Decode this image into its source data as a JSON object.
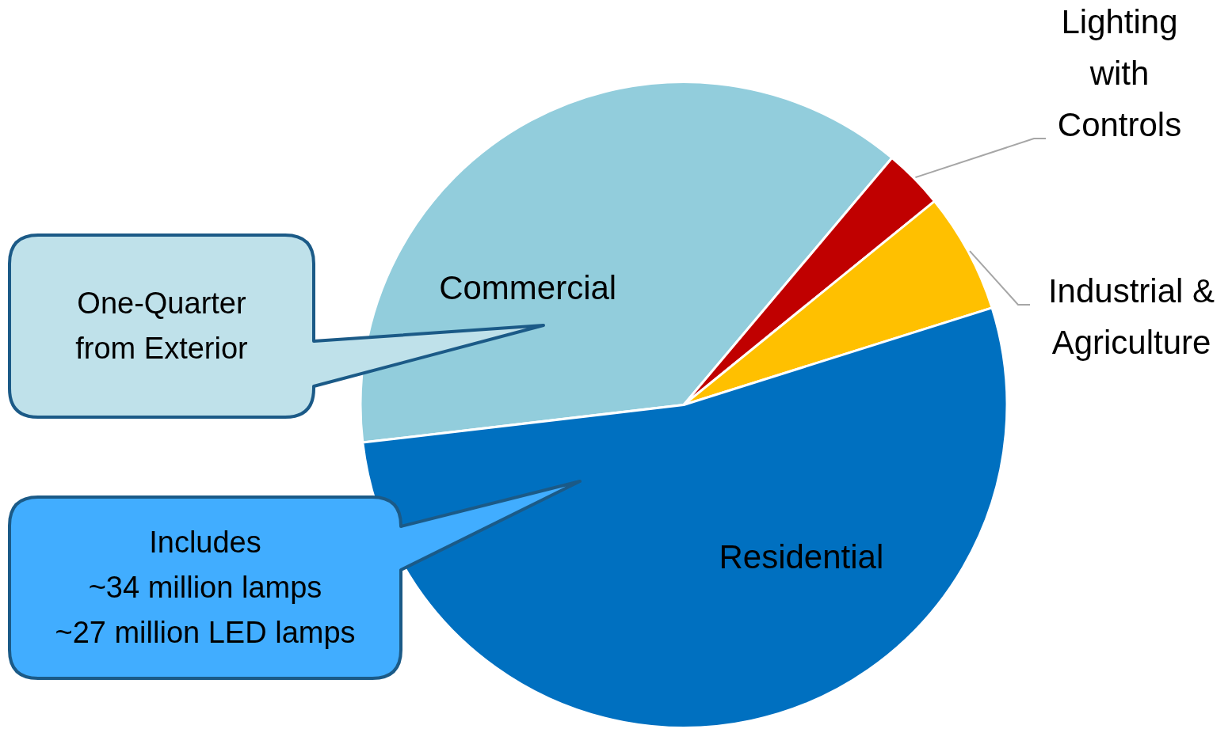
{
  "chart_data": {
    "type": "pie",
    "categories": [
      "Commercial",
      "Lighting with Controls",
      "Industrial & Agriculture",
      "Residential"
    ],
    "values": [
      38,
      3,
      6,
      53
    ],
    "colors": [
      "#92cddc",
      "#c00000",
      "#ffc000",
      "#0070c0"
    ],
    "annotations": [
      "One-Quarter\nfrom Exterior",
      "Includes\n~34 million lamps\n~27 million LED lamps"
    ]
  }
}
